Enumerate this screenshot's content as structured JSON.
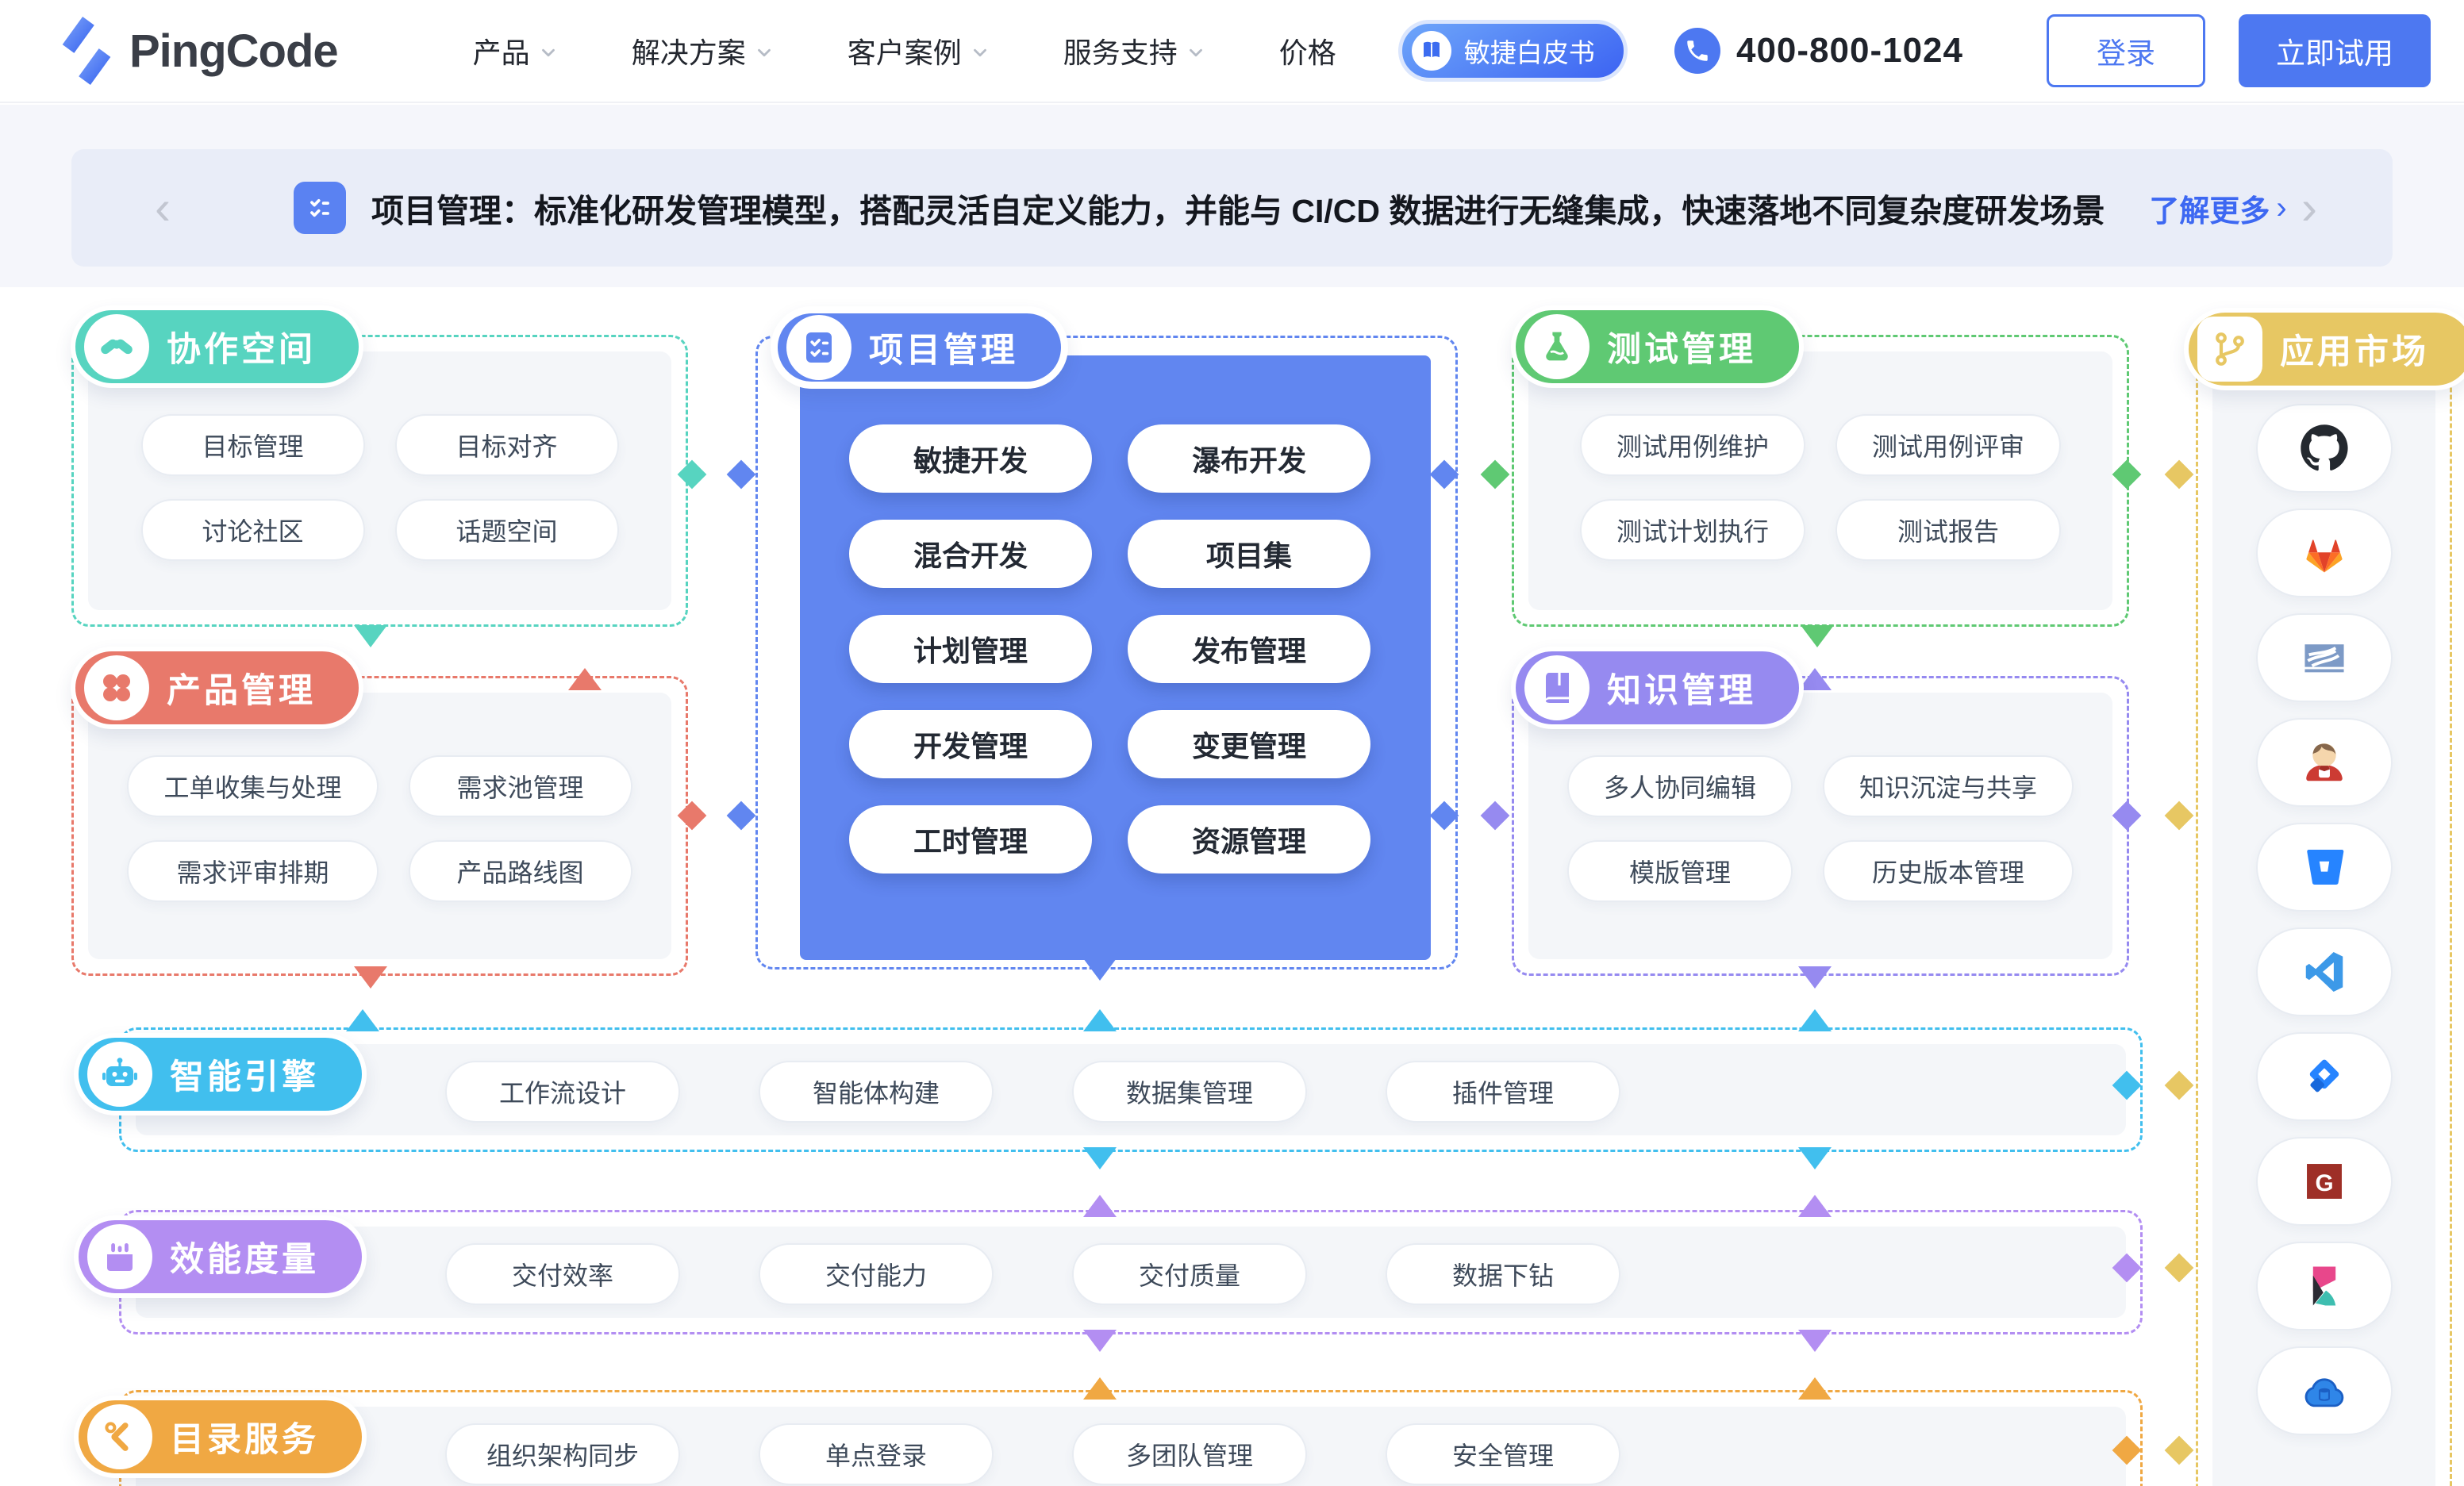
{
  "nav": {
    "logo_text": "PingCode",
    "items": [
      {
        "label": "产品",
        "chevron": true
      },
      {
        "label": "解决方案",
        "chevron": true
      },
      {
        "label": "客户案例",
        "chevron": true
      },
      {
        "label": "服务支持",
        "chevron": true
      },
      {
        "label": "价格",
        "chevron": false
      }
    ],
    "whitepaper_label": "敏捷白皮书",
    "phone_number": "400-800-1024",
    "login_label": "登录",
    "trial_label": "立即试用",
    "accent_color": "#4d78f1"
  },
  "banner": {
    "text": "项目管理：标准化研发管理模型，搭配灵活自定义能力，并能与 CI/CD 数据进行无缝集成，快速落地不同复杂度研发场景",
    "more_label": "了解更多",
    "more_arrow": "›",
    "prev_arrow": "‹",
    "next_arrow": "›",
    "link_color": "#3d68f2"
  },
  "sections": {
    "collab": {
      "title": "协作空间",
      "color": "#57d4c0",
      "icon": "handshake",
      "items": [
        "目标管理",
        "目标对齐",
        "讨论社区",
        "话题空间"
      ]
    },
    "project": {
      "title": "项目管理",
      "color": "#6186f0",
      "icon": "checklist",
      "items": [
        "敏捷开发",
        "瀑布开发",
        "混合开发",
        "项目集",
        "计划管理",
        "发布管理",
        "开发管理",
        "变更管理",
        "工时管理",
        "资源管理"
      ]
    },
    "test": {
      "title": "测试管理",
      "color": "#5fc973",
      "icon": "flask",
      "items": [
        "测试用例维护",
        "测试用例评审",
        "测试计划执行",
        "测试报告"
      ]
    },
    "product": {
      "title": "产品管理",
      "color": "#e8796b",
      "icon": "clover",
      "items": [
        "工单收集与处理",
        "需求池管理",
        "需求评审排期",
        "产品路线图"
      ]
    },
    "knowledge": {
      "title": "知识管理",
      "color": "#968af0",
      "icon": "book",
      "items": [
        "多人协同编辑",
        "知识沉淀与共享",
        "模版管理",
        "历史版本管理"
      ]
    },
    "ai": {
      "title": "智能引擎",
      "color": "#41bfee",
      "icon": "robot",
      "items": [
        "工作流设计",
        "智能体构建",
        "数据集管理",
        "插件管理"
      ]
    },
    "metrics": {
      "title": "效能度量",
      "color": "#b38ef2",
      "icon": "chart",
      "items": [
        "交付效率",
        "交付能力",
        "交付质量",
        "数据下钻"
      ]
    },
    "directory": {
      "title": "目录服务",
      "color": "#f0a843",
      "icon": "tools",
      "items": [
        "组织架构同步",
        "单点登录",
        "多团队管理",
        "安全管理"
      ]
    },
    "market": {
      "title": "应用市场",
      "color": "#e7c763",
      "icon": "branch",
      "apps": [
        "github",
        "gitlab",
        "subversion",
        "jenkins",
        "bitbucket",
        "vscode",
        "jira",
        "gerrit",
        "kibana",
        "cloud-database"
      ]
    }
  }
}
